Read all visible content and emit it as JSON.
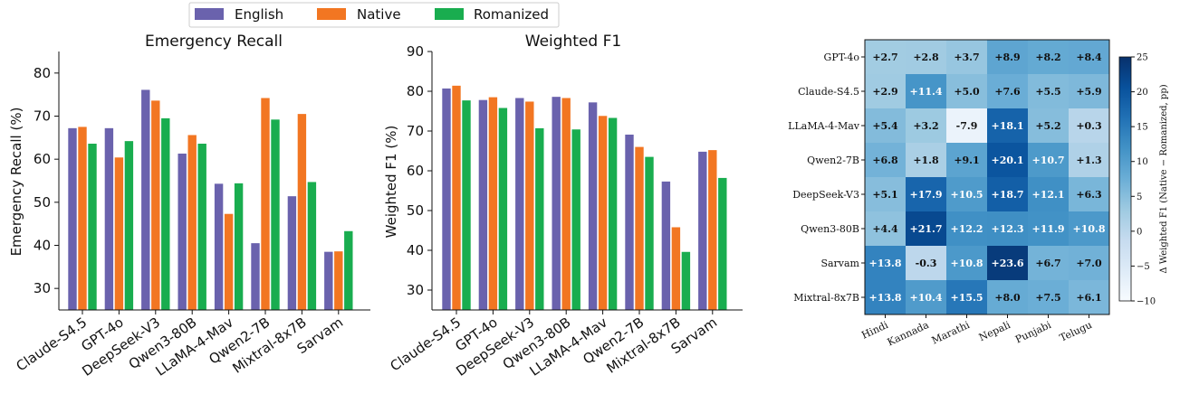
{
  "legend": {
    "entries": [
      {
        "label": "English",
        "color": "#6a62ad"
      },
      {
        "label": "Native",
        "color": "#f27622"
      },
      {
        "label": "Romanized",
        "color": "#19ad4f"
      }
    ]
  },
  "chart_data": [
    {
      "type": "bar",
      "title": "Emergency Recall",
      "xlabel": "",
      "ylabel": "Emergency Recall (%)",
      "ylim": [
        25,
        85
      ],
      "yticks": [
        30,
        40,
        50,
        60,
        70,
        80
      ],
      "categories": [
        "Claude-S4.5",
        "GPT-4o",
        "DeepSeek-V3",
        "Qwen3-80B",
        "LLaMA-4-Mav",
        "Qwen2-7B",
        "Mixtral-8x7B",
        "Sarvam"
      ],
      "series": [
        {
          "name": "English",
          "color": "#6a62ad",
          "values": [
            67.2,
            67.2,
            76.1,
            61.3,
            54.3,
            40.5,
            51.4,
            38.5
          ]
        },
        {
          "name": "Native",
          "color": "#f27622",
          "values": [
            67.5,
            60.4,
            73.6,
            65.6,
            47.3,
            74.2,
            70.5,
            38.6
          ]
        },
        {
          "name": "Romanized",
          "color": "#19ad4f",
          "values": [
            63.6,
            64.2,
            69.5,
            63.6,
            54.4,
            69.2,
            54.7,
            43.3
          ]
        }
      ]
    },
    {
      "type": "bar",
      "title": "Weighted F1",
      "xlabel": "",
      "ylabel": "Weighted F1 (%)",
      "ylim": [
        25,
        90
      ],
      "yticks": [
        30,
        40,
        50,
        60,
        70,
        80,
        90
      ],
      "categories": [
        "Claude-S4.5",
        "GPT-4o",
        "DeepSeek-V3",
        "Qwen3-80B",
        "LLaMA-4-Mav",
        "Qwen2-7B",
        "Mixtral-8x7B",
        "Sarvam"
      ],
      "series": [
        {
          "name": "English",
          "color": "#6a62ad",
          "values": [
            80.7,
            77.8,
            78.3,
            78.6,
            77.2,
            69.1,
            57.3,
            64.8
          ]
        },
        {
          "name": "Native",
          "color": "#f27622",
          "values": [
            81.4,
            78.5,
            77.4,
            78.3,
            73.8,
            66.0,
            45.8,
            65.2
          ]
        },
        {
          "name": "Romanized",
          "color": "#19ad4f",
          "values": [
            77.7,
            75.8,
            70.7,
            70.4,
            73.3,
            63.5,
            39.6,
            58.2
          ]
        }
      ]
    },
    {
      "type": "heatmap",
      "rows": [
        "GPT-4o",
        "Claude-S4.5",
        "LLaMA-4-Mav",
        "Qwen2-7B",
        "DeepSeek-V3",
        "Qwen3-80B",
        "Sarvam",
        "Mixtral-8x7B"
      ],
      "columns": [
        "Hindi",
        "Kannada",
        "Marathi",
        "Nepali",
        "Punjabi",
        "Telugu"
      ],
      "values": [
        [
          2.7,
          2.8,
          3.7,
          8.9,
          8.2,
          8.4
        ],
        [
          2.9,
          11.4,
          5.0,
          7.6,
          5.5,
          5.9
        ],
        [
          5.4,
          3.2,
          -7.9,
          18.1,
          5.2,
          0.3
        ],
        [
          6.8,
          1.8,
          9.1,
          20.1,
          10.7,
          1.3
        ],
        [
          5.1,
          17.9,
          10.5,
          18.7,
          12.1,
          6.3
        ],
        [
          4.4,
          21.7,
          12.2,
          12.3,
          11.9,
          10.8
        ],
        [
          13.8,
          -0.3,
          10.8,
          23.6,
          6.7,
          7.0
        ],
        [
          13.8,
          10.4,
          15.5,
          8.0,
          7.5,
          6.1
        ]
      ],
      "cell_labels": [
        [
          "+2.7",
          "+2.8",
          "+3.7",
          "+8.9",
          "+8.2",
          "+8.4"
        ],
        [
          "+2.9",
          "+11.4",
          "+5.0",
          "+7.6",
          "+5.5",
          "+5.9"
        ],
        [
          "+5.4",
          "+3.2",
          "-7.9",
          "+18.1",
          "+5.2",
          "+0.3"
        ],
        [
          "+6.8",
          "+1.8",
          "+9.1",
          "+20.1",
          "+10.7",
          "+1.3"
        ],
        [
          "+5.1",
          "+17.9",
          "+10.5",
          "+18.7",
          "+12.1",
          "+6.3"
        ],
        [
          "+4.4",
          "+21.7",
          "+12.2",
          "+12.3",
          "+11.9",
          "+10.8"
        ],
        [
          "+13.8",
          "-0.3",
          "+10.8",
          "+23.6",
          "+6.7",
          "+7.0"
        ],
        [
          "+13.8",
          "+10.4",
          "+15.5",
          "+8.0",
          "+7.5",
          "+6.1"
        ]
      ],
      "colorbar": {
        "label": "Δ Weighted F1 (Native − Romanized, pp)",
        "range": [
          -10,
          25
        ],
        "ticks": [
          25,
          20,
          15,
          10,
          5,
          0,
          -5,
          -10
        ],
        "tick_labels": [
          "25",
          "20",
          "15",
          "10",
          "5",
          "0",
          "−5",
          "−10"
        ],
        "colormap": "Blues"
      }
    }
  ]
}
